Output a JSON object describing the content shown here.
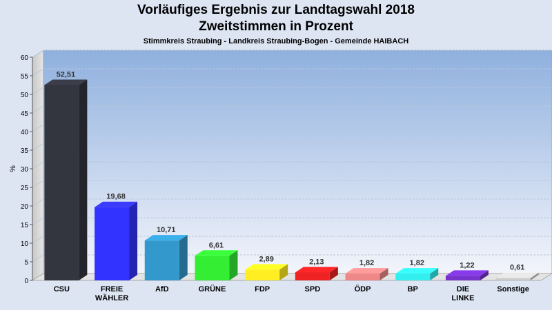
{
  "chart_data": {
    "type": "bar",
    "title": "Vorläufiges Ergebnis zur Landtagswahl 2018",
    "subtitle": "Zweitstimmen in Prozent",
    "caption": "Stimmkreis Straubing - Landkreis Straubing-Bogen - Gemeinde HAIBACH",
    "ylabel": "%",
    "xlabel": "",
    "ylim": [
      0,
      60
    ],
    "yticks": [
      0,
      5,
      10,
      15,
      20,
      25,
      30,
      35,
      40,
      45,
      50,
      55,
      60
    ],
    "grid": true,
    "categories": [
      [
        "CSU"
      ],
      [
        "FREIE",
        "WÄHLER"
      ],
      [
        "AfD"
      ],
      [
        "GRÜNE"
      ],
      [
        "FDP"
      ],
      [
        "SPD"
      ],
      [
        "ÖDP"
      ],
      [
        "BP"
      ],
      [
        "DIE",
        "LINKE"
      ],
      [
        "Sonstige"
      ]
    ],
    "values": [
      52.51,
      19.68,
      10.71,
      6.61,
      2.89,
      2.13,
      1.82,
      1.82,
      1.22,
      0.61
    ],
    "value_labels": [
      "52,51",
      "19,68",
      "10,71",
      "6,61",
      "2,89",
      "2,13",
      "1,82",
      "1,82",
      "1,22",
      "0,61"
    ],
    "colors": [
      "#33353f",
      "#3333ff",
      "#3399cc",
      "#33ee33",
      "#ffee22",
      "#ee2222",
      "#ee8888",
      "#33eeee",
      "#7733cc",
      "#cccccc"
    ]
  }
}
